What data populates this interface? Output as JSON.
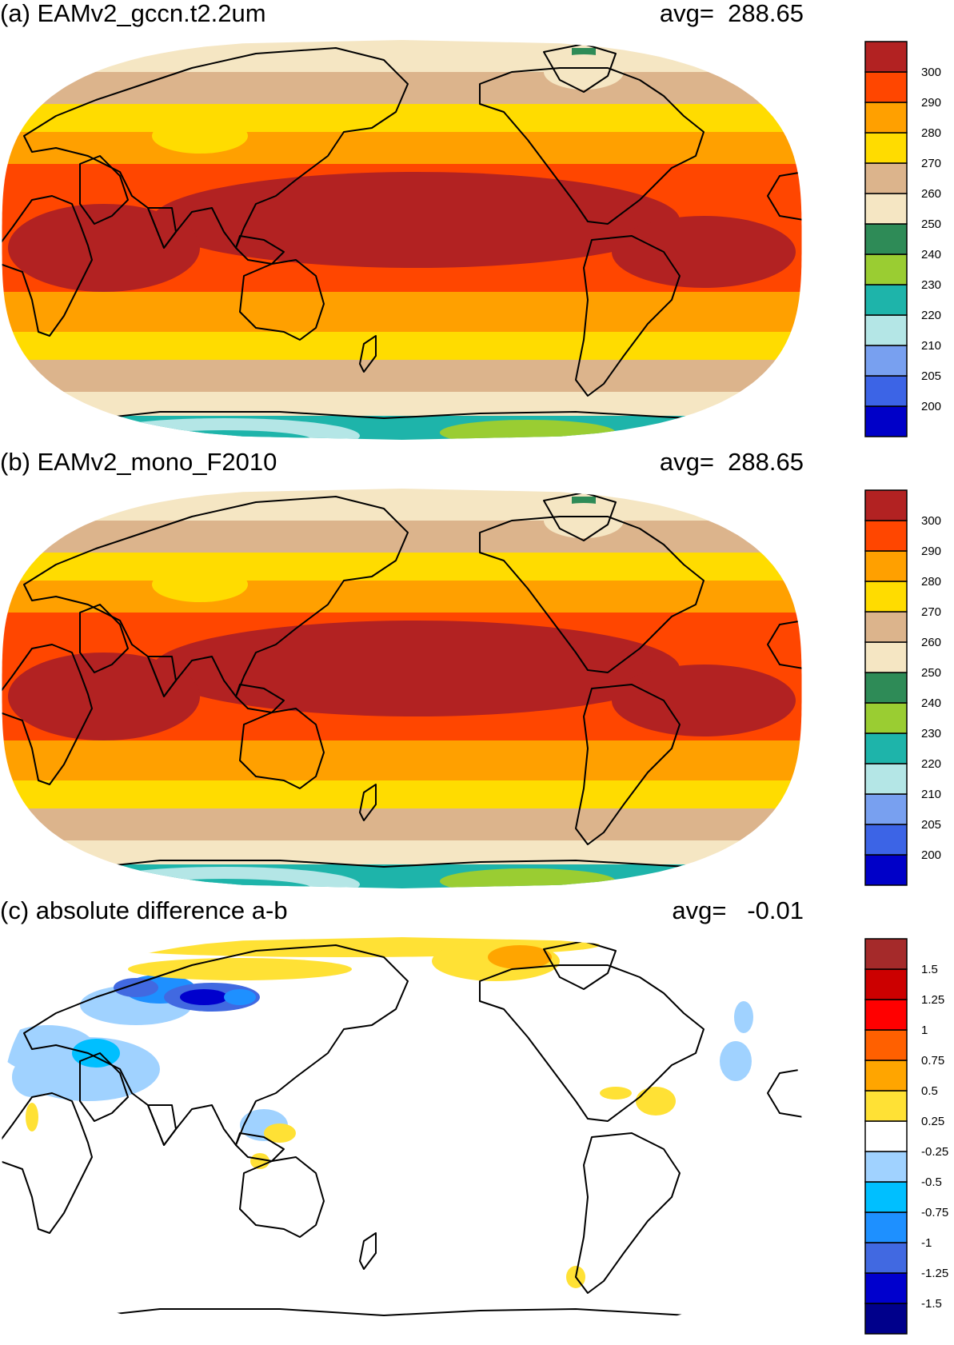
{
  "panels": [
    {
      "title": "(a) EAMv2_gccn.t2.2um",
      "avg_label": "avg=  288.65",
      "kind": "abs",
      "palette": [
        "#0000c8",
        "#3c64e6",
        "#78a0f0",
        "#b4e6e6",
        "#1eb4aa",
        "#9acd32",
        "#2e8b57",
        "#f5e6c3",
        "#dcb48c",
        "#ffdc00",
        "#ffa000",
        "#ff4600",
        "#b22222"
      ],
      "levels": [
        "200",
        "205",
        "210",
        "220",
        "230",
        "240",
        "250",
        "260",
        "270",
        "280",
        "290",
        "300"
      ]
    },
    {
      "title": "(b) EAMv2_mono_F2010",
      "avg_label": "avg=  288.65",
      "kind": "abs",
      "palette": [
        "#0000c8",
        "#3c64e6",
        "#78a0f0",
        "#b4e6e6",
        "#1eb4aa",
        "#9acd32",
        "#2e8b57",
        "#f5e6c3",
        "#dcb48c",
        "#ffdc00",
        "#ffa000",
        "#ff4600",
        "#b22222"
      ],
      "levels": [
        "200",
        "205",
        "210",
        "220",
        "230",
        "240",
        "250",
        "260",
        "270",
        "280",
        "290",
        "300"
      ]
    },
    {
      "title": "(c) absolute difference a-b",
      "avg_label": "avg=   -0.01",
      "kind": "diff",
      "palette": [
        "#00008b",
        "#0000cd",
        "#4169e1",
        "#1e90ff",
        "#00bfff",
        "#a0d2ff",
        "#ffffff",
        "#ffe135",
        "#ffa500",
        "#ff6000",
        "#ff0000",
        "#cc0000",
        "#a52a2a"
      ],
      "levels": [
        "-1.5",
        "-1.25",
        "-1",
        "-0.75",
        "-0.5",
        "-0.25",
        "0.25",
        "0.5",
        "0.75",
        "1",
        "1.25",
        "1.5"
      ]
    }
  ]
}
